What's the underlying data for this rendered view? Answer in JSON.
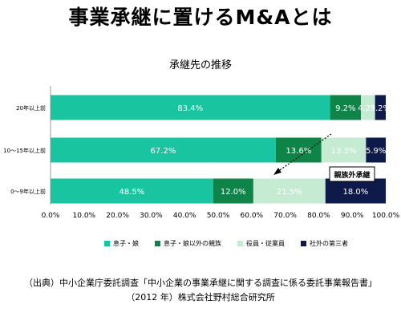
{
  "main_title": "事業承継に置けるM&Aとは",
  "chart_data": {
    "type": "bar",
    "orientation": "horizontal",
    "stacked": true,
    "title": "承継先の推移",
    "categories": [
      "20年以上前",
      "10～15年以上前",
      "0～9年以上前"
    ],
    "series": [
      {
        "name": "息子・娘",
        "color": "#19c5a0",
        "values": [
          83.4,
          67.2,
          48.5
        ],
        "labels": [
          "83.4%",
          "67.2%",
          "48.5%"
        ]
      },
      {
        "name": "息子・娘以外の親族",
        "color": "#0e8448",
        "values": [
          9.2,
          13.6,
          12.0
        ],
        "labels": [
          "9.2%",
          "13.6%",
          "12.0%"
        ]
      },
      {
        "name": "役員・従業員",
        "color": "#c6ebd3",
        "values": [
          4.2,
          13.3,
          21.5
        ],
        "labels": [
          "4.2%",
          "13.3%",
          "21.5%"
        ]
      },
      {
        "name": "社外の第三者",
        "color": "#0d1a4a",
        "values": [
          3.2,
          5.9,
          18.0
        ],
        "labels": [
          "3.2%",
          "5.9%",
          "18.0%"
        ]
      }
    ],
    "x_ticks": [
      "0.0%",
      "10.0%",
      "20.0%",
      "30.0%",
      "40.0%",
      "50.0%",
      "60.0%",
      "70.0%",
      "80.0%",
      "90.0%",
      "100.0%"
    ],
    "xlim": [
      0,
      100
    ],
    "legend_position": "bottom",
    "annotation": "親族外承継"
  },
  "source": {
    "line1": "（出典）中小企業庁委託調査「中小企業の事業承継に関する調査に係る委託事業報告書」",
    "line2": "（2012 年）株式会社野村総合研究所"
  }
}
